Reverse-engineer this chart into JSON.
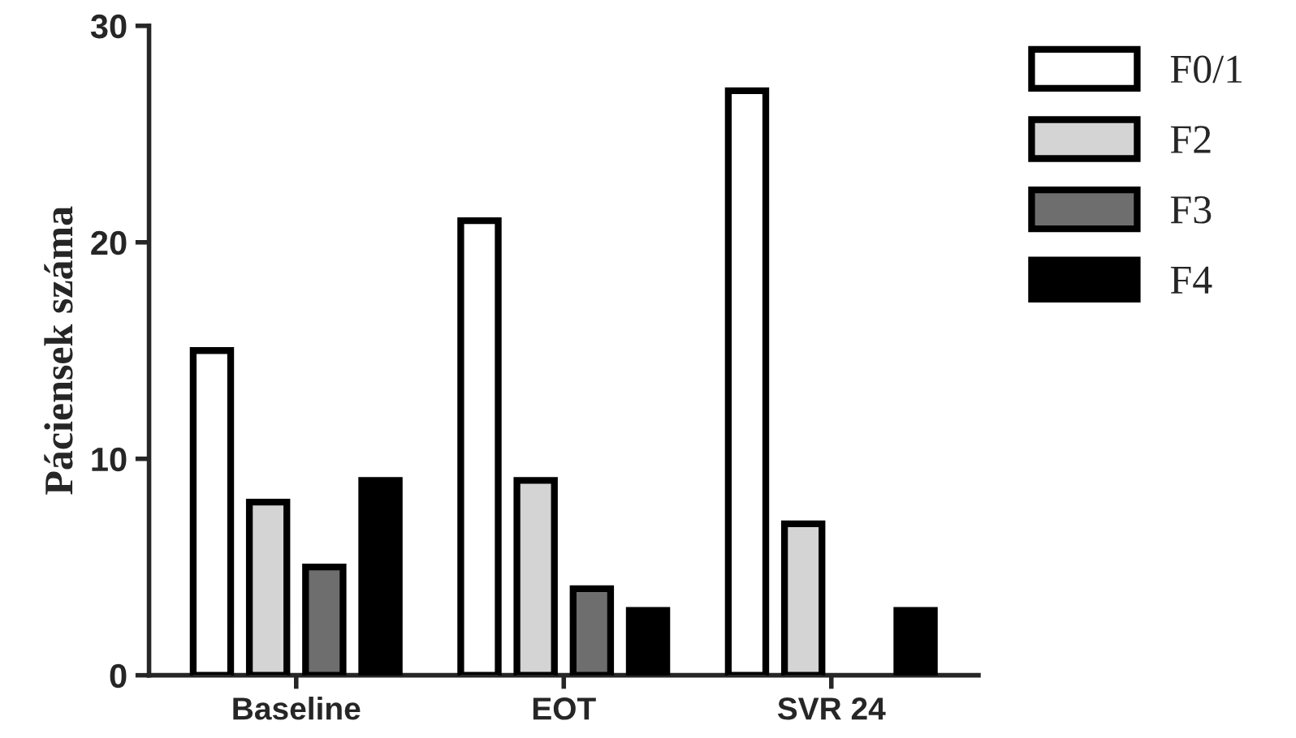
{
  "chart_data": {
    "type": "bar",
    "ylabel": "Páciensek száma",
    "categories": [
      "Baseline",
      "EOT",
      "SVR 24"
    ],
    "series": [
      {
        "name": "F0/1",
        "color": "#ffffff",
        "values": [
          15,
          21,
          27
        ]
      },
      {
        "name": "F2",
        "color": "#d4d4d4",
        "values": [
          8,
          9,
          7
        ]
      },
      {
        "name": "F3",
        "color": "#6e6e6e",
        "values": [
          5,
          4,
          null
        ]
      },
      {
        "name": "F4",
        "color": "#000000",
        "values": [
          9,
          3,
          3
        ]
      }
    ],
    "ylim": [
      0,
      30
    ],
    "yticks": [
      0,
      10,
      20,
      30
    ],
    "grid": false,
    "legend": "top right"
  }
}
